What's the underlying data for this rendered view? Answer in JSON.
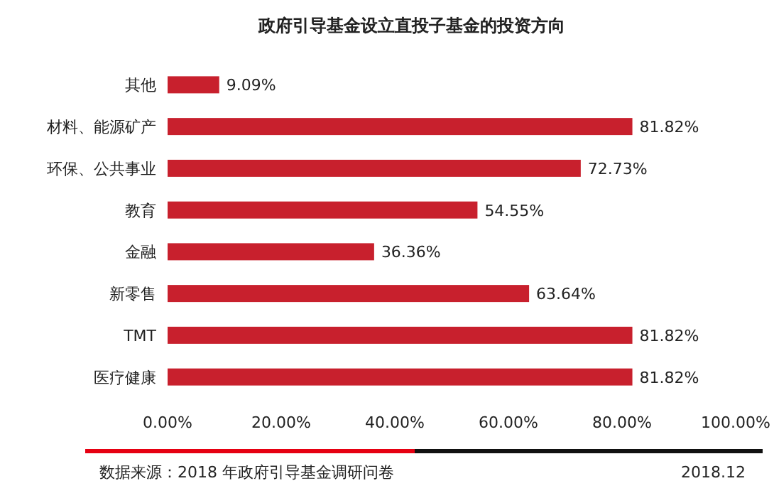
{
  "chart_data": {
    "type": "bar",
    "orientation": "horizontal",
    "title": "政府引导基金设立直投子基金的投资方向",
    "categories": [
      "其他",
      "材料、能源矿产",
      "环保、公共事业",
      "教育",
      "金融",
      "新零售",
      "TMT",
      "医疗健康"
    ],
    "values": [
      9.09,
      81.82,
      72.73,
      54.55,
      36.36,
      63.64,
      81.82,
      81.82
    ],
    "value_labels": [
      "9.09%",
      "81.82%",
      "72.73%",
      "54.55%",
      "36.36%",
      "63.64%",
      "81.82%",
      "81.82%"
    ],
    "color": "#c8202d",
    "xlim": [
      0,
      100
    ],
    "xticks": [
      {
        "value": 0,
        "label": "0.00%"
      },
      {
        "value": 20,
        "label": "20.00%"
      },
      {
        "value": 40,
        "label": "40.00%"
      },
      {
        "value": 60,
        "label": "60.00%"
      },
      {
        "value": 80,
        "label": "80.00%"
      },
      {
        "value": 100,
        "label": "100.00%"
      }
    ],
    "annotations": [
      "数据来源：2018 年政府引导基金调研问卷",
      "2018.12"
    ]
  }
}
